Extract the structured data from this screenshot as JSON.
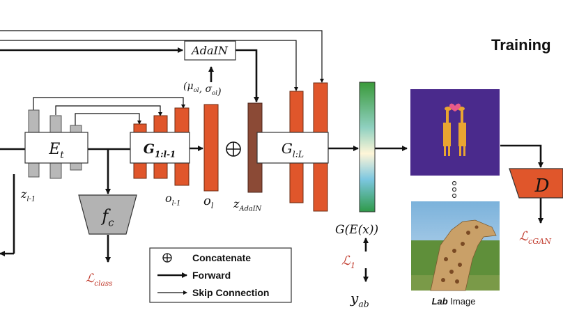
{
  "title": "Training",
  "blocks": {
    "encoder": "E_t",
    "g_low": "G_{1:l-1}",
    "g_high": "G_{l:L}",
    "adain": "AdaIN",
    "classifier": "f_c",
    "discriminator": "D"
  },
  "labels": {
    "z_skip": "z_{l-1}",
    "o_prev": "o_{l-1}",
    "o_l": "o_l",
    "z_adain": "z_{AdaIN}",
    "mu_sigma": "(μ_{o_l}, σ_{o_l})",
    "concat_symbol": "⊕",
    "generated": "G(E(x))",
    "target": "y_{ab}",
    "lab_bold": "Lab",
    "lab_rest": " Image"
  },
  "losses": {
    "class": "ℒ_{class}",
    "l1": "ℒ_1",
    "cgan": "ℒ_{cGAN}"
  },
  "legend": {
    "concatenate": "Concatenate",
    "forward": "Forward",
    "skip": "Skip Connection"
  },
  "colors": {
    "orange": "#e0562b",
    "brown": "#8b4a36",
    "gray": "#b8b8b8",
    "purple": "#4a2a8c",
    "loss_red": "#c0392b"
  },
  "icons": [
    "heart-icon",
    "giraffe-pair-icon",
    "vertical-ellipsis-icon",
    "concatenate-icon"
  ]
}
